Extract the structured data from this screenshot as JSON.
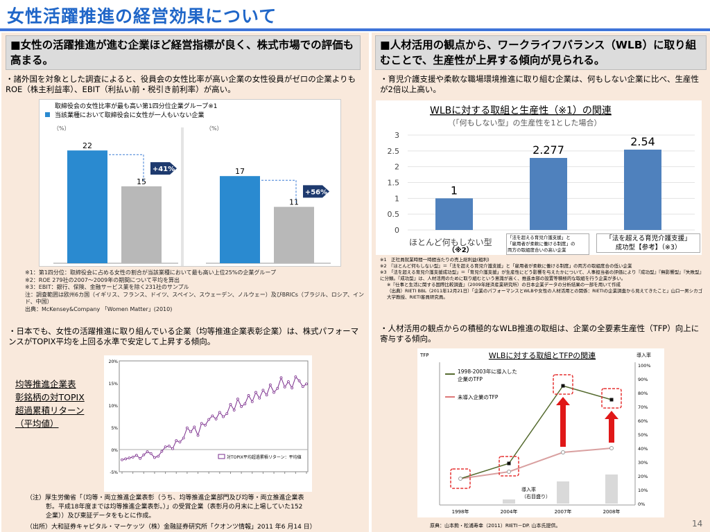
{
  "page": {
    "title": "女性活躍推進の経営効果について",
    "page_number": "14"
  },
  "left": {
    "heading": "■女性の活躍推進が進む企業ほど経営指標が良く、株式市場での評価も高まる。",
    "bullet1": "・諸外国を対象とした調査によると、役員会の女性比率が高い企業の女性役員がゼロの企業よりもROE（株主利益率）、EBIT（利払い前・税引き前利率）が高い。",
    "fig1": {
      "legend_line1": "取締役会の女性比率が最も高い第1四分位企業グループ※1",
      "legend_line2": "当該業種において取締役会に女性が一人もいない企業",
      "left_unit": "（%）",
      "right_unit": "（%）",
      "left_bars": [
        22,
        15
      ],
      "right_bars": [
        17,
        11
      ],
      "left_gain": "+41%",
      "right_gain": "+56%"
    },
    "fig1_source": "出典：McKensey&Company 「Women Matter」(2010)",
    "notes": [
      "※1：第1四分位：取締役会に占める女性の割合が当該業種において最も高い上位25%の企業グループ",
      "※2：ROE 279社の2007～2009年の期間について平均を算出",
      "※3：EBIT：銀行、保険、金融サービス業を除く231社のサンプル",
      "注：調査範囲は欧州6カ国（イギリス、フランス、ドイツ、スペイン、スウェーデン、ノルウェー）及びBRICs（ブラジル、ロシア、インド、中国）"
    ],
    "bullet2": "・日本でも、女性の活躍推進に取り組んでいる企業（均等推進企業表彰企業）は、株式パフォーマンスがTOPIX平均を上回る水準で安定して上昇する傾向。",
    "fig2_caption": [
      "均等推進企業表",
      "彰銘柄の対TOPIX",
      "超過累積リターン",
      "（平均値）"
    ],
    "fig2": {
      "yticks": [
        "20%",
        "15%",
        "10%",
        "5%",
        "0%",
        "-5%"
      ],
      "legend": "対TOPIX平均超過累積リターン：平均値"
    },
    "footnote": [
      "（注）厚生労働省「（均等・両立推進企業表彰（うち、均等推進企業部門及び均等・両立推進企業表",
      "彰。平成18年度までは均等推進企業表彰。）」の受賞企業（表彰月の月末に上場していた152",
      "企業））及び東証データをもとに作成。"
    ],
    "source": "（出所）大和証券キャピタル・マーケッツ（株）金融証券研究所「クオンツ情報」2011 年6 月14 日）"
  },
  "right": {
    "heading": "■人材活用の観点から、ワークライフバランス（WLB）に取り組むことで、生産性が上昇する傾向が見られる。",
    "bullet1": "・育児介護支援や柔軟な職場環境推進に取り組む企業は、何もしない企業に比べ、生産性が2倍以上高い。",
    "chart_title": "WLBに対する取組と生産性（※1）の関連",
    "chart_subtitle": "（「何もしない型」の生産性を1とした場合）",
    "cat1": "ほとんど何もしない型",
    "cat1_note": "（※2）",
    "cat2_lines": [
      "「法を超える育児介護支援」と",
      "「雇用者が柔軟に働ける制度」の",
      "両方の取組度合いの高い企業"
    ],
    "cat3_lines": [
      "「法を超える育児介護支援」",
      "成功型【参考】（※3）"
    ],
    "notes": [
      "※1　正社員就業時間一時間当たりの売上総利益(粗利)",
      "※2　『ほとんど何もしない型』＝「法を超える育児介護支援」と「雇用者が柔軟に働ける制度」の両方の取組度合の低い企業",
      "※3　「法を超える育児介護支援成功型」＝「育児介護支援」が生産性にどう影響を与えたかについて、人事担当者の評価により『成功型』『無影響型』『失敗型』に分類。『成功型』は、人材活用のために取り組むという意識が高く、推進本部の設置等積極的な取組を行う企業が多い。",
      "※『仕事と生活に関する国際比較調査』（2009年経済産業研究所）の日本企業データの分析結果の一部を用いて作成",
      "（出典）RIETI BBL（2011年12月21日）「企業のパフォーマンスとWLBや女性の人材活用との関係：RIETIの企業調査から見えてきたこと」山口一男シカゴ大学教授、RIETI客員研究員。"
    ],
    "bullet2": "・人材活用の観点からの積極的なWLB推進の取組は、企業の全要素生産性（TFP）向上に寄与する傾向。",
    "fig2_title": "WLBに対する取組とTFPの関連",
    "fig2": {
      "ylabel_left": "TFP",
      "ylabel_right": "導入率",
      "legend1": [
        "1998-2003年に導入した",
        "企業のTFP"
      ],
      "legend2": "未導入企業のTFP",
      "bar_legend": [
        "導入率",
        "（右目盛り）"
      ],
      "right_ticks": [
        "100%",
        "90%",
        "80%",
        "70%",
        "60%",
        "50%",
        "40%",
        "30%",
        "20%",
        "10%",
        "0%"
      ]
    },
    "source": "原典：山本勲・松浦寿幸（2011）RIETI－DP. 山本氏提供。"
  },
  "chart_data": [
    {
      "type": "bar",
      "title": "",
      "categories": [
        "取締役会の女性比率が最も高い第1四分位企業グループ",
        "当該業種において取締役会に女性が一人もいない企業"
      ],
      "values": [
        22,
        15
      ],
      "gain": "+41%",
      "ylabel": "（%）"
    },
    {
      "type": "bar",
      "title": "",
      "categories": [
        "取締役会の女性比率が最も高い第1四分位企業グループ",
        "当該業種において取締役会に女性が一人もいない企業"
      ],
      "values": [
        17,
        11
      ],
      "gain": "+56%",
      "ylabel": "（%）"
    },
    {
      "type": "line",
      "title": "",
      "ylabel": "均等推進企業表彰銘柄の対TOPIX超過累積リターン（平均値）",
      "ylim": [
        -5,
        20
      ],
      "yunit": "%",
      "series": [
        {
          "name": "対TOPIX平均超過累積リターン：平均値",
          "values": [
            -2.3,
            -2.1,
            -1.9,
            -1.7,
            -1.3,
            -2,
            -1.2,
            -0.5,
            -0.9,
            -1.8,
            -1.5,
            -0.4,
            0.6,
            0.8,
            0.2,
            2,
            1.7,
            2.6,
            4.9,
            4,
            5.1,
            3.2,
            5.9,
            5.5,
            6.8,
            7.6,
            6.9,
            8.4,
            7.4,
            8.1,
            10.2,
            8.9,
            11.4,
            9.7,
            10.3,
            12.2,
            10.8,
            12.9,
            11.6,
            13.4,
            12.3,
            14.6,
            12.9,
            13.8,
            16.2,
            14.1,
            15.3,
            13.9,
            16.4,
            15.5,
            14.2,
            14.8
          ]
        }
      ]
    },
    {
      "type": "bar",
      "title": "WLBに対する取組と生産性（※1）の関連",
      "subtitle": "（「何もしない型」の生産性を1とした場合）",
      "categories": [
        "ほとんど何もしない型",
        "「法を超える育児介護支援」と「雇用者が柔軟に働ける制度」の両方の取組度合いの高い企業",
        "「法を超える育児介護支援」成功型【参考】"
      ],
      "values": [
        1,
        2.277,
        2.54
      ],
      "ylim": [
        0,
        3
      ]
    },
    {
      "type": "line",
      "title": "WLBに対する取組とTFPの関連",
      "x": [
        "1998年",
        "2004年",
        "2007年",
        "2008年"
      ],
      "series": [
        {
          "name": "1998-2003年に導入した企業のTFP",
          "values": [
            0.18,
            0.29,
            0.85,
            0.75
          ]
        },
        {
          "name": "未導入企業のTFP",
          "values": [
            0.18,
            0.23,
            0.37,
            0.4
          ]
        },
        {
          "name": "導入率（右目盛り）",
          "values": [
            0,
            3,
            16,
            21
          ]
        }
      ]
    }
  ]
}
